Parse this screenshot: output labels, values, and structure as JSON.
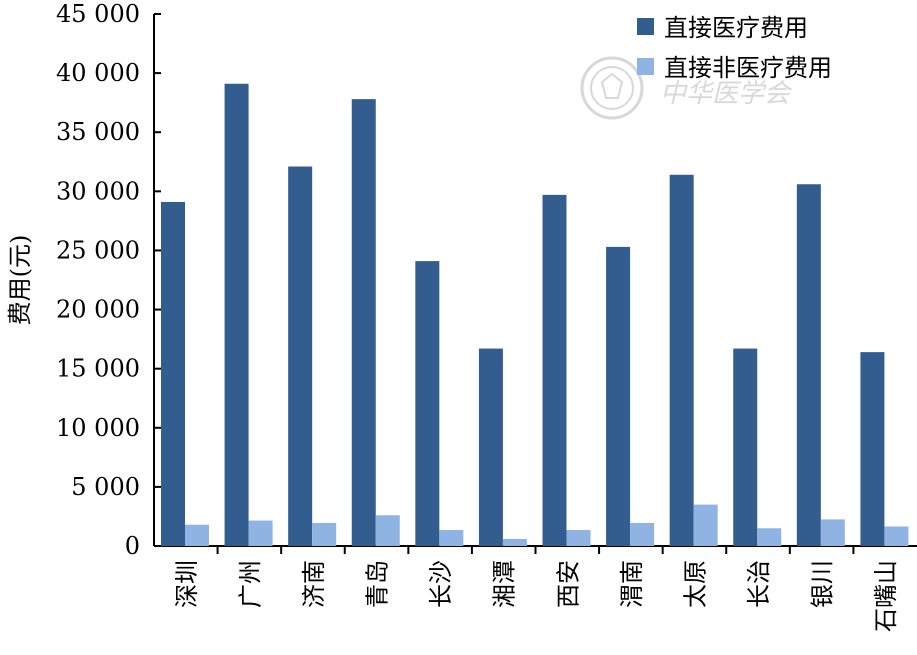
{
  "chart_data": {
    "type": "bar",
    "title": "",
    "ylabel": "费用(元)",
    "xlabel": "",
    "ylim": [
      0,
      45000
    ],
    "ytick_step": 5000,
    "yticks": [
      "0",
      "5 000",
      "10 000",
      "15 000",
      "20 000",
      "25 000",
      "30 000",
      "35 000",
      "40 000",
      "45 000"
    ],
    "grid": false,
    "legend_position": "top-right",
    "categories": [
      "深圳",
      "广州",
      "济南",
      "青岛",
      "长沙",
      "湘潭",
      "西安",
      "渭南",
      "太原",
      "长治",
      "银川",
      "石嘴山"
    ],
    "series": [
      {
        "name": "直接医疗费用",
        "color": "#335d8f",
        "values": [
          29100,
          39100,
          32100,
          37800,
          24100,
          16700,
          29700,
          25300,
          31400,
          16700,
          30600,
          16400
        ]
      },
      {
        "name": "直接非医疗费用",
        "color": "#8fb4e3",
        "values": [
          1800,
          2150,
          1950,
          2600,
          1350,
          600,
          1350,
          1950,
          3500,
          1500,
          2250,
          1650
        ]
      }
    ]
  },
  "watermark": {
    "text": "中华医学会",
    "icon": "society-seal-icon"
  }
}
